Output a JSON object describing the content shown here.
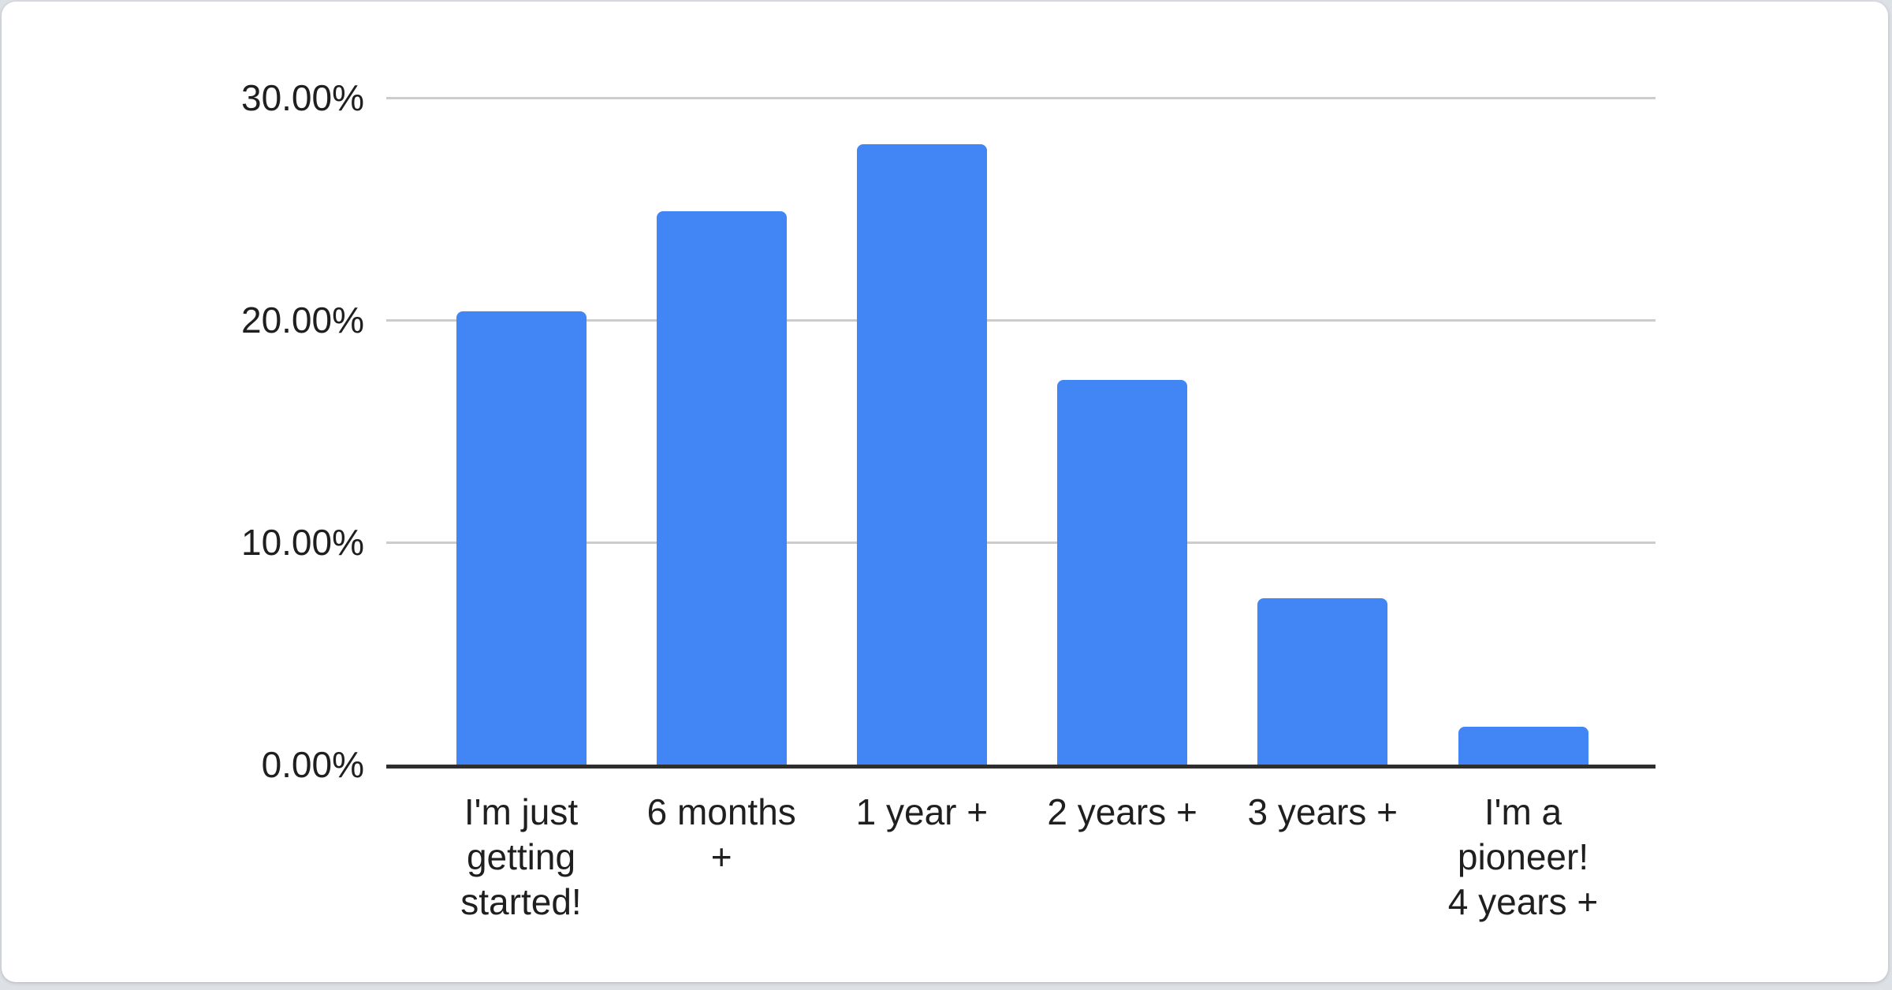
{
  "page": {
    "background_color": "#dde1e6",
    "card_background_color": "#ffffff"
  },
  "chart_data": {
    "type": "bar",
    "title": "",
    "xlabel": "",
    "ylabel": "",
    "categories": [
      "I'm just getting started!",
      "6 months +",
      "1 year +",
      "2 years +",
      "3 years +",
      "I'm a pioneer! 4 years +"
    ],
    "category_label_lines": [
      [
        "I'm just",
        "getting",
        "started!"
      ],
      [
        "6 months",
        "+"
      ],
      [
        "1 year +"
      ],
      [
        "2 years +"
      ],
      [
        "3 years +"
      ],
      [
        "I'm a",
        "pioneer!",
        "4 years +"
      ]
    ],
    "values": [
      20.4,
      24.9,
      27.9,
      17.3,
      7.5,
      1.7
    ],
    "unit": "%",
    "ylim": [
      0,
      30
    ],
    "y_ticks": [
      {
        "value": 0,
        "label": "0.00%"
      },
      {
        "value": 10,
        "label": "10.00%"
      },
      {
        "value": 20,
        "label": "20.00%"
      },
      {
        "value": 30,
        "label": "30.00%"
      }
    ],
    "grid": "horizontal",
    "legend_position": "none",
    "bar_color": "#4285f4",
    "gridline_color": "#cccccc",
    "axis_line_color": "#2e2e2e",
    "label_color": "#1f1f1f"
  }
}
